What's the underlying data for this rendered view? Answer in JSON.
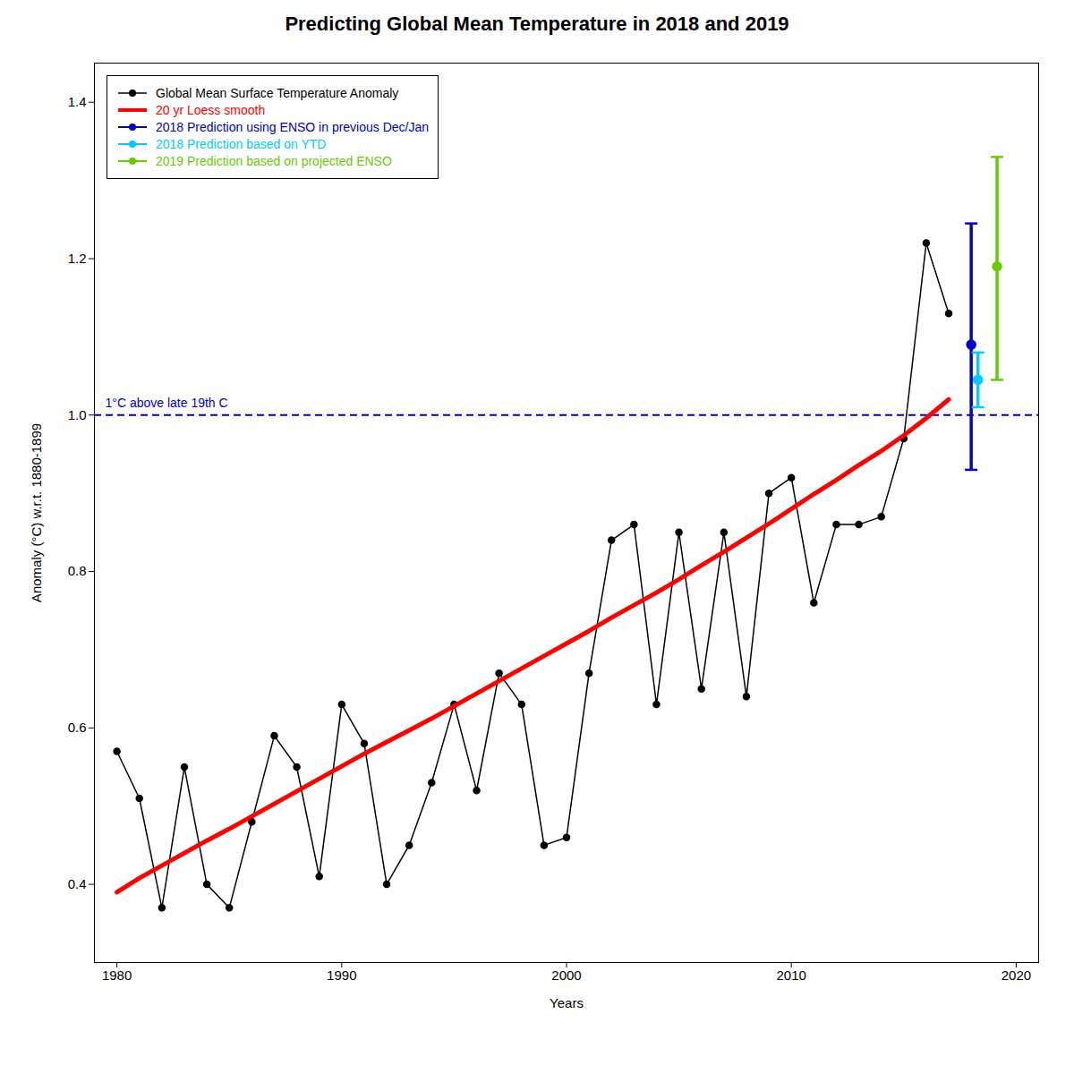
{
  "chart_data": {
    "type": "line",
    "title": "Predicting Global Mean Temperature in 2018 and 2019",
    "xlabel": "Years",
    "ylabel": "Anomaly (°C) w.r.t. 1880-1899",
    "xlim": [
      1979,
      2021
    ],
    "ylim": [
      0.3,
      1.45
    ],
    "xticks": [
      1980,
      1990,
      2000,
      2010,
      2020
    ],
    "yticks": [
      0.4,
      0.6,
      0.8,
      {
        "value": 1.0,
        "label": "1.0"
      },
      1.2,
      1.4
    ],
    "grid": false,
    "legend": "upper left",
    "series": [
      {
        "name": "Global Mean Surface Temperature Anomaly",
        "type": "line",
        "color": "black",
        "marker": "circle",
        "line_style": "solid",
        "x": [
          1980,
          1981,
          1982,
          1983,
          1984,
          1985,
          1986,
          1987,
          1988,
          1989,
          1990,
          1991,
          1992,
          1993,
          1994,
          1995,
          1996,
          1997,
          1998,
          1999,
          2000,
          2001,
          2002,
          2003,
          2004,
          2005,
          2006,
          2007,
          2008,
          2009,
          2010,
          2011,
          2012,
          2013,
          2014,
          2015,
          2016,
          2017
        ],
        "values": [
          0.57,
          0.51,
          0.37,
          0.55,
          0.4,
          0.37,
          0.48,
          0.59,
          0.55,
          0.41,
          0.63,
          0.58,
          0.4,
          0.45,
          0.53,
          0.63,
          0.52,
          0.67,
          0.63,
          0.45,
          0.46,
          0.67,
          0.84,
          0.86,
          0.63,
          0.85,
          0.65,
          0.85,
          0.64,
          0.9,
          0.92,
          0.76,
          0.86,
          0.86,
          0.87,
          0.97,
          1.22,
          1.13
        ]
      },
      {
        "name": "20 yr Loess smooth",
        "type": "line",
        "color": "red",
        "line_style": "solid",
        "x": [
          1980,
          1981,
          1982,
          1983,
          1984,
          1985,
          1986,
          1987,
          1988,
          1989,
          1990,
          1991,
          1992,
          1993,
          1994,
          1995,
          1996,
          1997,
          1998,
          1999,
          2000,
          2001,
          2002,
          2003,
          2004,
          2005,
          2006,
          2007,
          2008,
          2009,
          2010,
          2011,
          2012,
          2013,
          2014,
          2015,
          2016,
          2017
        ],
        "values": [
          0.39,
          0.408,
          0.424,
          0.44,
          0.456,
          0.471,
          0.487,
          0.503,
          0.519,
          0.535,
          0.551,
          0.567,
          0.582,
          0.597,
          0.612,
          0.628,
          0.644,
          0.66,
          0.676,
          0.692,
          0.708,
          0.724,
          0.741,
          0.757,
          0.773,
          0.79,
          0.808,
          0.825,
          0.843,
          0.861,
          0.88,
          0.899,
          0.917,
          0.936,
          0.954,
          0.974,
          0.996,
          1.02
        ]
      },
      {
        "name": "2018 Prediction using ENSO in previous Dec/Jan",
        "type": "errorbar",
        "color": "#0000cc",
        "marker": "circle",
        "x": [
          2018.0
        ],
        "values": [
          1.09
        ],
        "low": [
          0.93
        ],
        "high": [
          1.245
        ]
      },
      {
        "name": "2018 Prediction based on YTD",
        "type": "errorbar",
        "color": "#00ccff",
        "marker": "circle",
        "x": [
          2018.3
        ],
        "values": [
          1.045
        ],
        "low": [
          1.01
        ],
        "high": [
          1.08
        ]
      },
      {
        "name": "2019 Prediction based on projected ENSO",
        "type": "errorbar",
        "color": "#66cc00",
        "marker": "circle",
        "x": [
          2019.15
        ],
        "values": [
          1.19
        ],
        "low": [
          1.045
        ],
        "high": [
          1.33
        ]
      }
    ],
    "annotations": [
      {
        "text": "1°C above late 19th C",
        "y": 1.0,
        "color": "#0000cc",
        "line_style": "dashed"
      }
    ]
  }
}
